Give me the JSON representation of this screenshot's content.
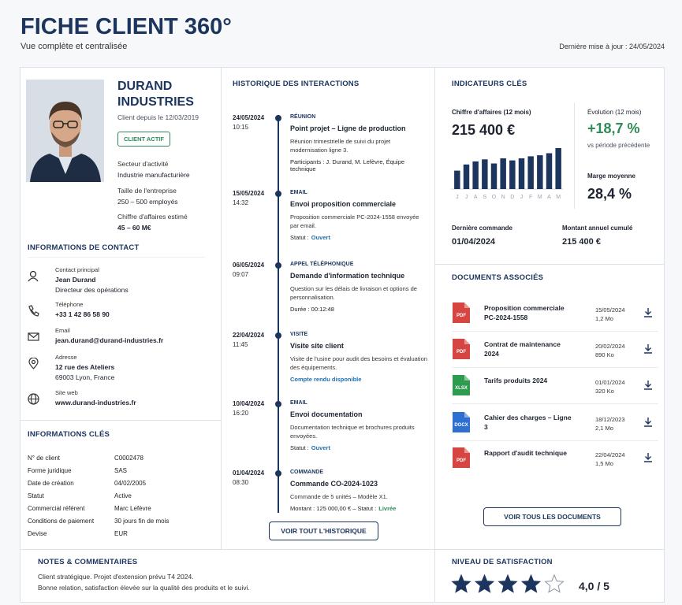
{
  "header": {
    "title": "FICHE CLIENT 360°",
    "subtitle": "Vue complète et centralisée",
    "last_update": "Dernière mise à jour : 24/05/2024"
  },
  "profile": {
    "name": "DURAND INDUSTRIES",
    "client_since": "Client depuis le 12/03/2019",
    "status": "CLIENT ACTIF",
    "fields": [
      {
        "label": "Secteur d'activité",
        "value": "Industrie manufacturière"
      },
      {
        "label": "Taille de l'entreprise",
        "value": "250 – 500 employés"
      },
      {
        "label": "Chiffre d'affaires estimé",
        "value": "45 – 60 M€"
      }
    ]
  },
  "contact": {
    "title": "INFORMATIONS DE CONTACT",
    "items": [
      {
        "label": "Contact principal",
        "lines": [
          "Jean Durand",
          "Directeur des opérations"
        ]
      },
      {
        "label": "Téléphone",
        "lines": [
          "+33 1 42 86 58 90"
        ]
      },
      {
        "label": "Email",
        "lines": [
          "jean.durand@durand-industries.fr"
        ]
      },
      {
        "label": "Adresse",
        "lines": [
          "12 rue des Ateliers",
          "69003 Lyon, France"
        ]
      },
      {
        "label": "Site web",
        "lines": [
          "www.durand-industries.fr"
        ]
      }
    ]
  },
  "key_info": {
    "title": "INFORMATIONS CLÉS",
    "rows": [
      [
        "N° de client",
        "C0002478"
      ],
      [
        "Forme juridique",
        "SAS"
      ],
      [
        "Date de création",
        "04/02/2005"
      ],
      [
        "Statut",
        "Active"
      ],
      [
        "Commercial référent",
        "Marc Lefèvre"
      ],
      [
        "Conditions de paiement",
        "30 jours fin de mois"
      ],
      [
        "Devise",
        "EUR"
      ]
    ]
  },
  "history": {
    "title": "HISTORIQUE DES INTERACTIONS",
    "entries": [
      {
        "date": "24/05/2024",
        "time": "10:15",
        "type": "RÉUNION",
        "title": "Point projet – Ligne de production",
        "text": "Réunion trimestrielle de suivi du projet modernisation ligne 3.",
        "detail": "Participants : J. Durand, M. Lefèvre, Équipe technique"
      },
      {
        "date": "15/05/2024",
        "time": "14:32",
        "type": "EMAIL",
        "title": "Envoi proposition commerciale",
        "text": "Proposition commerciale PC-2024-1558 envoyée par email.",
        "detail": "Statut :",
        "highlight": "Ouvert",
        "highlight_color": "#1f6fb2"
      },
      {
        "date": "06/05/2024",
        "time": "09:07",
        "type": "APPEL TÉLÉPHONIQUE",
        "title": "Demande d'information technique",
        "text": "Question sur les délais de livraison et options de personnalisation.",
        "detail": "Durée : 00:12:48"
      },
      {
        "date": "22/04/2024",
        "time": "11:45",
        "type": "VISITE",
        "title": "Visite site client",
        "text": "Visite de l'usine pour audit des besoins et évaluation des équipements.",
        "highlight": "Compte rendu disponible",
        "highlight_color": "#1f6fb2"
      },
      {
        "date": "10/04/2024",
        "time": "16:20",
        "type": "EMAIL",
        "title": "Envoi documentation",
        "text": "Documentation technique et brochures produits envoyées.",
        "detail": "Statut :",
        "highlight": "Ouvert",
        "highlight_color": "#1f6fb2"
      },
      {
        "date": "01/04/2024",
        "time": "08:30",
        "type": "COMMANDE",
        "title": "Commande CO-2024-1023",
        "text": "Commande de 5 unités – Modèle X1.",
        "detail": "Montant : 125 000,00 € – Statut :",
        "highlight": "Livrée",
        "highlight_color": "#2e8b57"
      }
    ],
    "button": "VOIR TOUT L'HISTORIQUE"
  },
  "indicators": {
    "title": "INDICATEURS CLÉS",
    "revenue": {
      "label": "Chiffre d'affaires (12 mois)",
      "value": "215 400 €",
      "chart": {
        "type": "bar",
        "categories": [
          "J",
          "J",
          "A",
          "S",
          "O",
          "N",
          "D",
          "J",
          "F",
          "M",
          "A",
          "M"
        ],
        "values": [
          18,
          24,
          27,
          29,
          25,
          30,
          28,
          30,
          32,
          33,
          35,
          40
        ],
        "color": "#1c355e"
      }
    },
    "evolution": {
      "label": "Évolution (12 mois)",
      "value": "+18,7 %",
      "note": "vs période précédente"
    },
    "margin": {
      "label": "Marge moyenne",
      "value": "28,4 %"
    },
    "last_order": {
      "label": "Dernière commande",
      "value": "01/04/2024"
    },
    "cumulative": {
      "label": "Montant annuel cumulé",
      "value": "215 400 €"
    }
  },
  "documents": {
    "title": "DOCUMENTS ASSOCIÉS",
    "items": [
      {
        "format": "PDF",
        "color": "#d64541",
        "name": "Proposition commerciale PC-2024-1558",
        "date": "15/05/2024",
        "size": "1,2 Mo"
      },
      {
        "format": "PDF",
        "color": "#d64541",
        "name": "Contrat de maintenance 2024",
        "date": "20/02/2024",
        "size": "890 Ko"
      },
      {
        "format": "XLSX",
        "color": "#2e9b4f",
        "name": "Tarifs produits 2024",
        "date": "01/01/2024",
        "size": "320 Ko"
      },
      {
        "format": "DOCX",
        "color": "#2f6fd1",
        "name": "Cahier des charges – Ligne 3",
        "date": "18/12/2023",
        "size": "2,1 Mo"
      },
      {
        "format": "PDF",
        "color": "#d64541",
        "name": "Rapport d'audit technique",
        "date": "22/04/2024",
        "size": "1,5 Mo"
      }
    ],
    "button": "VOIR TOUS LES DOCUMENTS"
  },
  "notes": {
    "title": "NOTES & COMMENTAIRES",
    "lines": [
      "Client stratégique. Projet d'extension prévu T4 2024.",
      "Bonne relation, satisfaction élevée sur la qualité des produits et le suivi."
    ]
  },
  "satisfaction": {
    "title": "NIVEAU DE SATISFACTION",
    "score": 4,
    "max": 5,
    "label": "4,0 / 5"
  }
}
